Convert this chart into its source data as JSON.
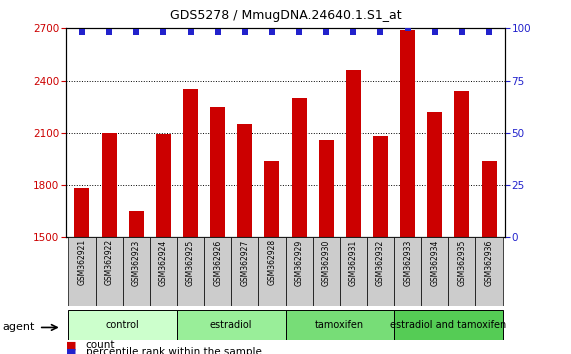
{
  "title": "GDS5278 / MmugDNA.24640.1.S1_at",
  "samples": [
    "GSM362921",
    "GSM362922",
    "GSM362923",
    "GSM362924",
    "GSM362925",
    "GSM362926",
    "GSM362927",
    "GSM362928",
    "GSM362929",
    "GSM362930",
    "GSM362931",
    "GSM362932",
    "GSM362933",
    "GSM362934",
    "GSM362935",
    "GSM362936"
  ],
  "counts": [
    1780,
    2100,
    1650,
    2090,
    2350,
    2250,
    2150,
    1940,
    2300,
    2060,
    2460,
    2080,
    2690,
    2220,
    2340,
    1940
  ],
  "percentile_y": [
    98,
    98,
    98,
    98,
    98,
    98,
    98,
    98,
    98,
    98,
    98,
    98,
    100,
    98,
    98,
    98
  ],
  "ylim_left": [
    1500,
    2700
  ],
  "ylim_right": [
    0,
    100
  ],
  "yticks_left": [
    1500,
    1800,
    2100,
    2400,
    2700
  ],
  "yticks_right": [
    0,
    25,
    50,
    75,
    100
  ],
  "bar_color": "#cc0000",
  "dot_color": "#2222cc",
  "groups": [
    {
      "label": "control",
      "start": 0,
      "end": 4,
      "color": "#ccffcc"
    },
    {
      "label": "estradiol",
      "start": 4,
      "end": 8,
      "color": "#99ee99"
    },
    {
      "label": "tamoxifen",
      "start": 8,
      "end": 12,
      "color": "#77dd77"
    },
    {
      "label": "estradiol and tamoxifen",
      "start": 12,
      "end": 16,
      "color": "#55cc55"
    }
  ],
  "sample_box_color": "#cccccc",
  "xlabel_agent": "agent",
  "legend_count_label": "count",
  "legend_percentile_label": "percentile rank within the sample",
  "background_color": "#ffffff",
  "plot_bg_color": "#ffffff",
  "tick_label_color_left": "#cc0000",
  "tick_label_color_right": "#2222cc",
  "title_fontsize": 9,
  "tick_fontsize": 7.5,
  "sample_fontsize": 5.5,
  "group_fontsize": 7,
  "legend_fontsize": 7.5
}
